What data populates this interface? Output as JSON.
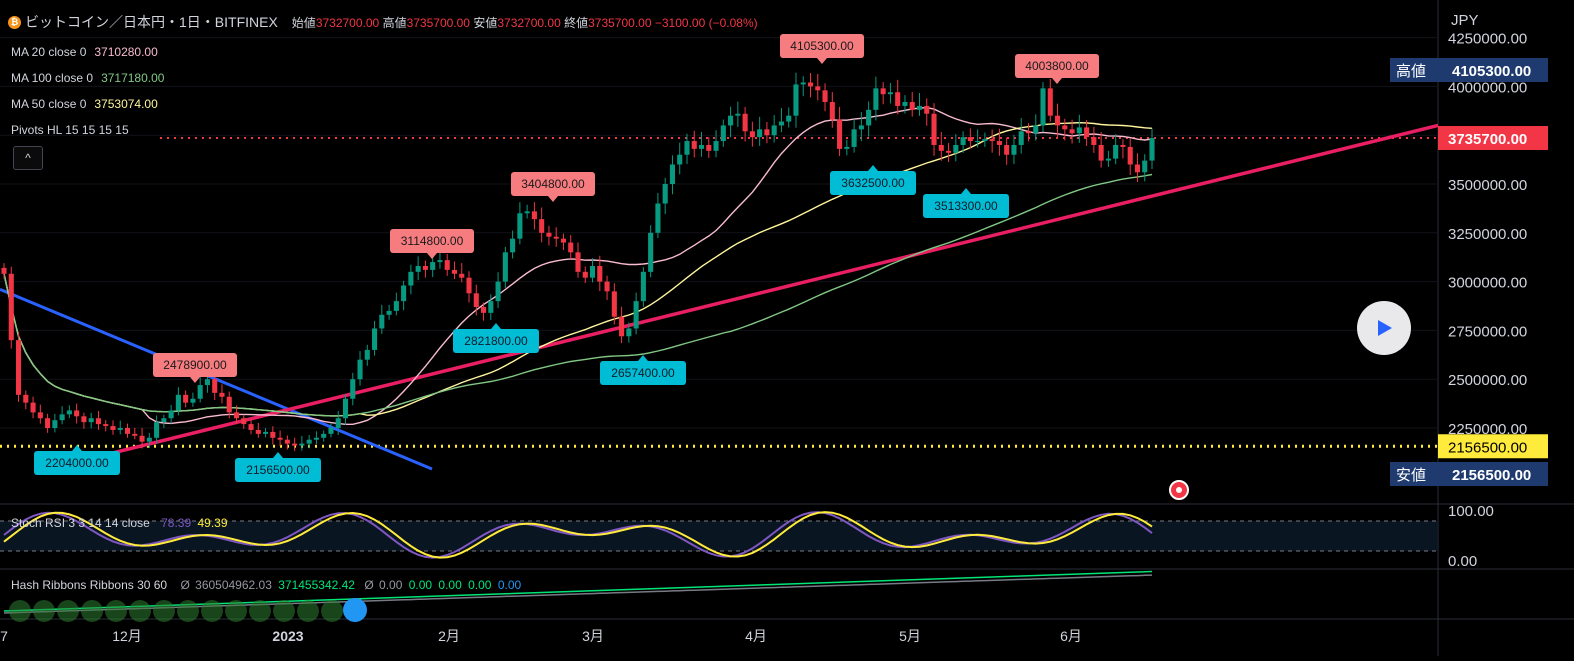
{
  "header": {
    "coin_glyph": "₿",
    "title": "ビットコイン／日本円・1日・BITFINEX",
    "open_label": "始値",
    "open": "3732700.00",
    "high_label": "高値",
    "high": "3735700.00",
    "low_label": "安値",
    "low": "3732700.00",
    "close_label": "終値",
    "close": "3735700.00",
    "change": "−3100.00 (−0.08%)"
  },
  "indicators": [
    {
      "label": "MA 20 close 0",
      "value": "3710280.00",
      "color": "#f8bbd0"
    },
    {
      "label": "MA 100 close 0",
      "value": "3717180.00",
      "color": "#81c784"
    },
    {
      "label": "MA 50 close 0",
      "value": "3753074.00",
      "color": "#fff59d"
    },
    {
      "label": "Pivots HL 15 15 15 15",
      "value": "",
      "color": "#d1d4dc"
    }
  ],
  "collapse_glyph": "^",
  "price_axis": {
    "currency": "JPY",
    "ticks": [
      "4250000.00",
      "4000000.00",
      "3750000.00",
      "3500000.00",
      "3250000.00",
      "3000000.00",
      "2750000.00",
      "2500000.00",
      "2250000.00"
    ],
    "high_tag_label": "高値",
    "high_tag_value": "4105300.00",
    "last_price": "3735700.00",
    "support_price": "2156500.00",
    "low_tag_label": "安値",
    "low_tag_value": "2156500.00"
  },
  "time_axis": {
    "labels": [
      "7",
      "12月",
      "2023",
      "2月",
      "3月",
      "4月",
      "5月",
      "6月"
    ]
  },
  "pivots": {
    "highs": [
      "2478900.00",
      "3114800.00",
      "3404800.00",
      "4105300.00",
      "4003800.00"
    ],
    "lows": [
      "2204000.00",
      "2156500.00",
      "2821800.00",
      "2657400.00",
      "3632500.00",
      "3513300.00"
    ]
  },
  "stoch_rsi": {
    "label": "Stoch RSI 3 3 14 14 close",
    "k": "78.39",
    "d": "49.39",
    "ticks": [
      "100.00",
      "0.00"
    ]
  },
  "hash_ribbons": {
    "label": "Hash Ribbons Ribbons 30 60",
    "mark1": "Ø",
    "v1": "360504962.03",
    "v2": "371455342.42",
    "mark2": "Ø",
    "v3": "0.00",
    "v4": "0.00",
    "v5": "0.00",
    "v6": "0.00",
    "v7": "0.00"
  },
  "colors": {
    "up": "#089981",
    "down": "#f23645",
    "trend_pink": "#e91e63",
    "trend_blue": "#2962ff",
    "pivot_high_bg": "#f77c80",
    "pivot_low_bg": "#22ab94",
    "pivot_low_cyan": "#00bcd4",
    "support": "#ffeb3b",
    "high_tag_bg": "#1e3a6e",
    "stoch_k": "#7e57c2",
    "stoch_d": "#ffeb3b"
  },
  "chart_data": {
    "type": "candlestick",
    "title": "ビットコイン／日本円・1日・BITFINEX",
    "ylabel": "JPY",
    "ylim": [
      2050000,
      4330000
    ],
    "x_axis_months": [
      "12月",
      "2023",
      "2月",
      "3月",
      "4月",
      "5月",
      "6月"
    ],
    "ohlc_last": {
      "open": 3732700,
      "high": 3735700,
      "low": 3732700,
      "close": 3735700
    },
    "moving_averages": [
      {
        "name": "MA 20 close 0",
        "last": 3710280.0
      },
      {
        "name": "MA 100 close 0",
        "last": 3717180.0
      },
      {
        "name": "MA 50 close 0",
        "last": 3753074.0
      }
    ],
    "pivot_highs": [
      2478900,
      3114800,
      3404800,
      4105300,
      4003800
    ],
    "pivot_lows": [
      2204000,
      2156500,
      2821800,
      2657400,
      3632500,
      3513300
    ],
    "support_level": 2156500,
    "last_price": 3735700,
    "close_series_approx": [
      3040000,
      2700000,
      2420000,
      2380000,
      2330000,
      2300000,
      2250000,
      2290000,
      2320000,
      2340000,
      2310000,
      2280000,
      2300000,
      2270000,
      2260000,
      2240000,
      2250000,
      2220000,
      2210000,
      2180000,
      2200000,
      2280000,
      2300000,
      2340000,
      2420000,
      2380000,
      2400000,
      2470000,
      2500000,
      2430000,
      2410000,
      2330000,
      2300000,
      2270000,
      2240000,
      2220000,
      2230000,
      2200000,
      2190000,
      2170000,
      2160000,
      2170000,
      2190000,
      2200000,
      2220000,
      2250000,
      2300000,
      2400000,
      2500000,
      2600000,
      2650000,
      2760000,
      2830000,
      2850000,
      2900000,
      2980000,
      3050000,
      3080000,
      3060000,
      3100000,
      3110000,
      3060000,
      3040000,
      3020000,
      2940000,
      2870000,
      2840000,
      2900000,
      3000000,
      3150000,
      3220000,
      3350000,
      3360000,
      3320000,
      3250000,
      3230000,
      3220000,
      3200000,
      3150000,
      3050000,
      3020000,
      3080000,
      3000000,
      2950000,
      2820000,
      2720000,
      2760000,
      2900000,
      3050000,
      3250000,
      3400000,
      3500000,
      3600000,
      3650000,
      3720000,
      3680000,
      3700000,
      3670000,
      3720000,
      3800000,
      3850000,
      3860000,
      3770000,
      3740000,
      3780000,
      3750000,
      3800000,
      3820000,
      3850000,
      4010000,
      4020000,
      4000000,
      3980000,
      3920000,
      3830000,
      3680000,
      3690000,
      3780000,
      3800000,
      3880000,
      3990000,
      3960000,
      3970000,
      3900000,
      3920000,
      3880000,
      3900000,
      3860000,
      3700000,
      3670000,
      3660000,
      3700000,
      3740000,
      3720000,
      3720000,
      3730000,
      3720000,
      3700000,
      3650000,
      3700000,
      3770000,
      3760000,
      3800000,
      3990000,
      3850000,
      3800000,
      3780000,
      3760000,
      3790000,
      3740000,
      3700000,
      3620000,
      3630000,
      3700000,
      3690000,
      3600000,
      3560000,
      3620000,
      3735700
    ]
  }
}
